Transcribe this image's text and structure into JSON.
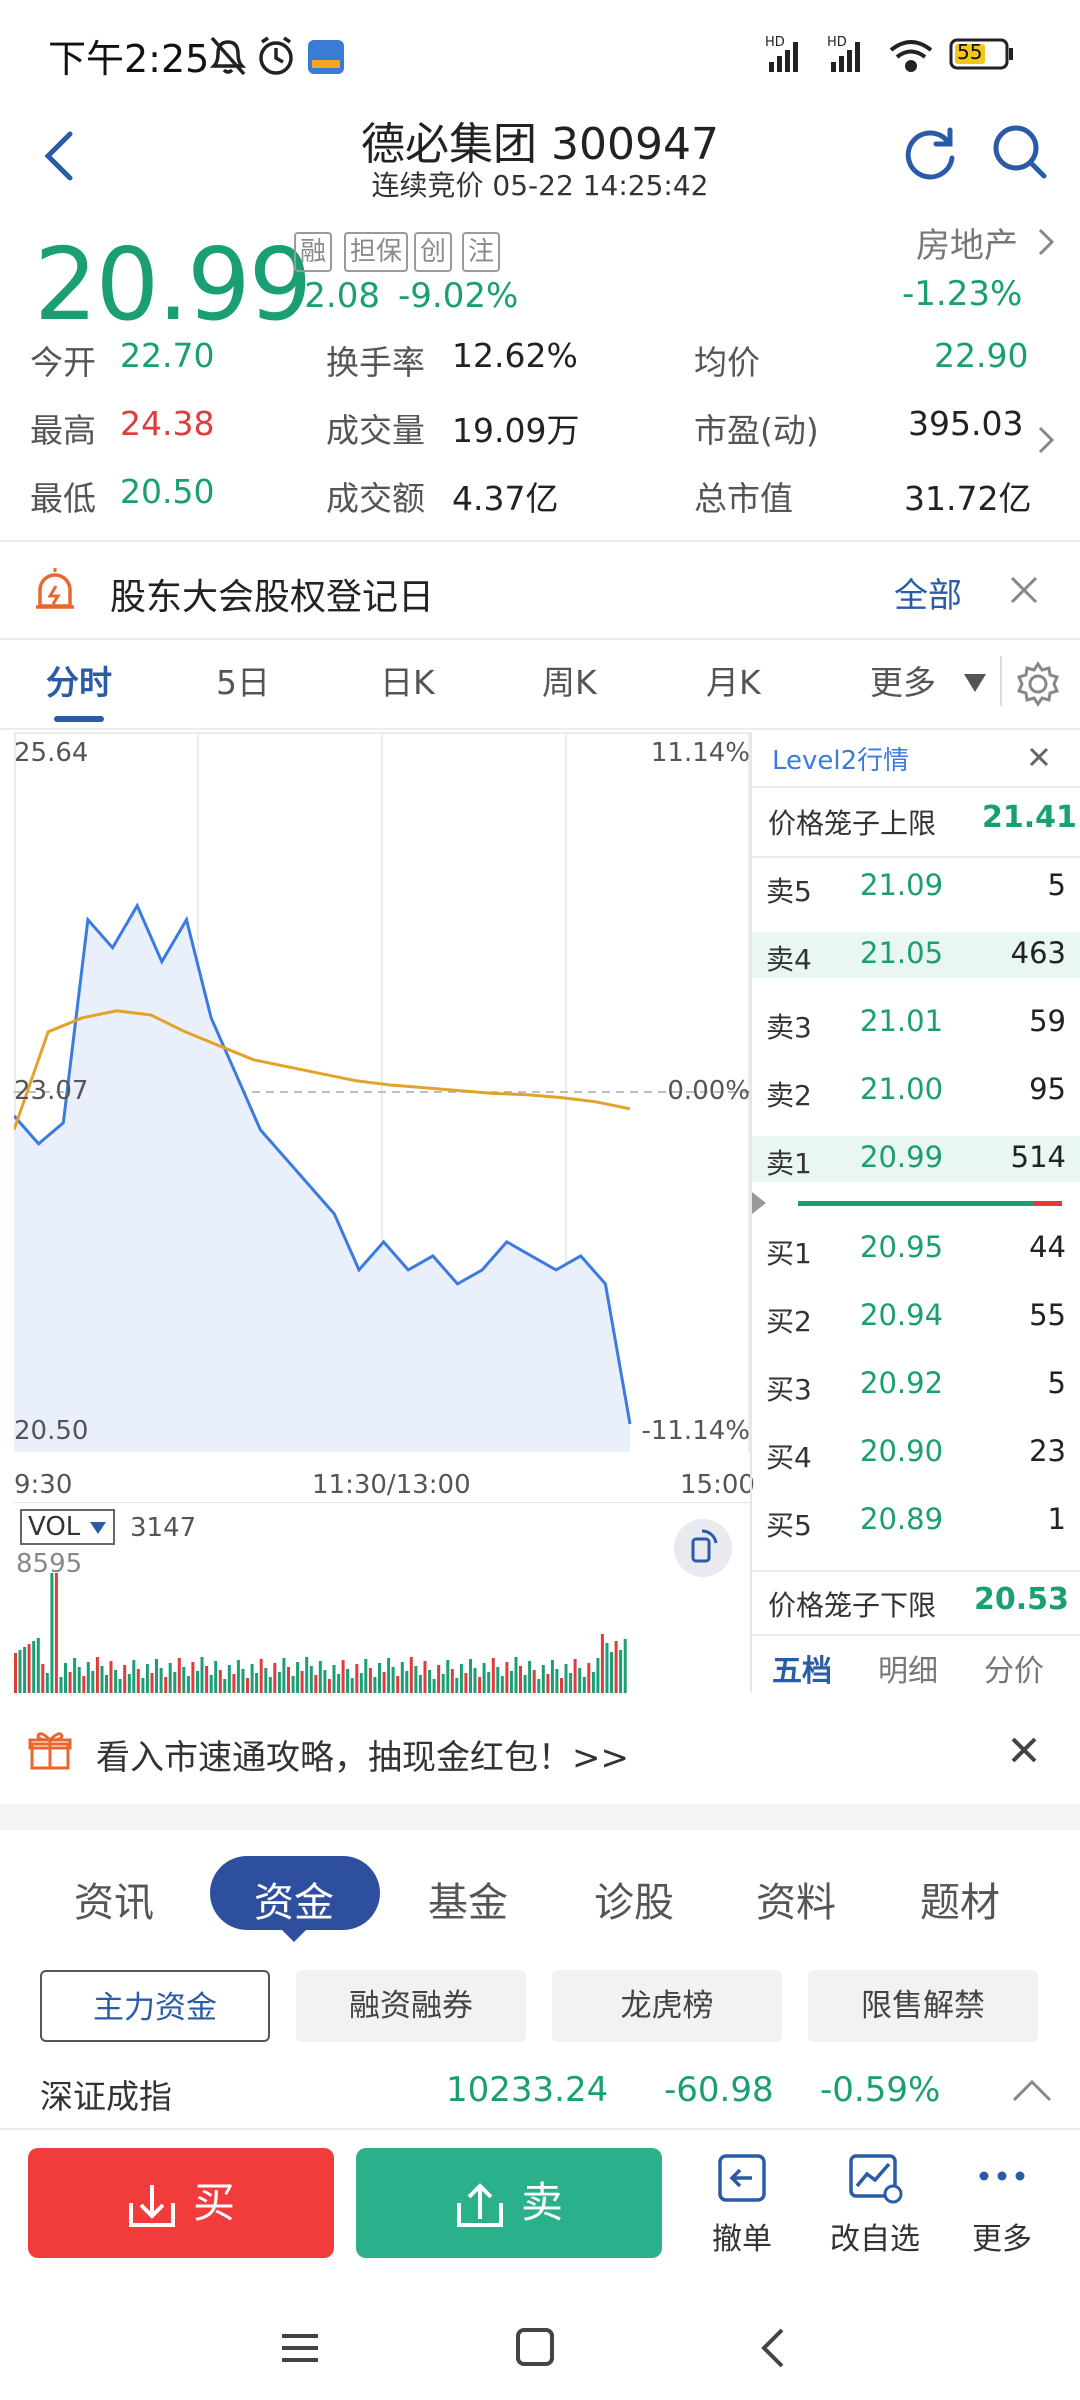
{
  "status_bar": {
    "time": "下午2:25",
    "battery": "55"
  },
  "header": {
    "title": "德必集团 300947",
    "subtitle": "连续竞价 05-22 14:25:42"
  },
  "quote": {
    "price": "20.99",
    "change": "-2.08",
    "change_pct": "-9.02%",
    "tags": [
      "融",
      "担保",
      "创",
      "注"
    ],
    "sector": "房地产",
    "sector_pct": "-1.23%"
  },
  "stats": [
    [
      {
        "label": "今开",
        "value": "22.70",
        "color": "green"
      },
      {
        "label": "换手率",
        "value": "12.62%",
        "color": "dark"
      },
      {
        "label": "均价",
        "value": "22.90",
        "color": "green"
      }
    ],
    [
      {
        "label": "最高",
        "value": "24.38",
        "color": "red"
      },
      {
        "label": "成交量",
        "value": "19.09万",
        "color": "dark"
      },
      {
        "label": "市盈(动)",
        "value": "395.03",
        "color": "dark"
      }
    ],
    [
      {
        "label": "最低",
        "value": "20.50",
        "color": "green"
      },
      {
        "label": "成交额",
        "value": "4.37亿",
        "color": "dark"
      },
      {
        "label": "总市值",
        "value": "31.72亿",
        "color": "dark"
      }
    ]
  ],
  "notice": {
    "text": "股东大会股权登记日",
    "action": "全部"
  },
  "chart_tabs": [
    "分时",
    "5日",
    "日K",
    "周K",
    "月K",
    "更多"
  ],
  "chart": {
    "price_high": "25.64",
    "price_mid": "23.07",
    "price_low": "20.50",
    "pct_high": "11.14%",
    "pct_mid": "0.00%",
    "pct_low": "-11.14%",
    "time_start": "9:30",
    "time_mid": "11:30/13:00",
    "time_end": "15:00",
    "vol_label": "VOL",
    "vol_value": "3147",
    "vol_max": "8595"
  },
  "chart_data": {
    "type": "line",
    "ylim": [
      20.5,
      25.64
    ],
    "series": [
      {
        "values": [
          22.9,
          22.7,
          22.85,
          24.3,
          24.1,
          24.4,
          24.0,
          24.3,
          23.6,
          23.2,
          22.8,
          22.6,
          22.4,
          22.2,
          21.8,
          22.0,
          21.8,
          21.9,
          21.7,
          21.8,
          22.0,
          21.9,
          21.8,
          21.9,
          21.7,
          20.7
        ]
      },
      {
        "values": [
          22.8,
          23.5,
          23.6,
          23.65,
          23.62,
          23.5,
          23.4,
          23.3,
          23.25,
          23.2,
          23.15,
          23.12,
          23.1,
          23.08,
          23.06,
          23.05,
          23.03,
          23.0,
          22.95
        ]
      }
    ]
  },
  "orderbook": {
    "title": "Level2行情",
    "upper_label": "价格笼子上限",
    "upper_value": "21.41",
    "asks": [
      {
        "label": "卖5",
        "price": "21.09",
        "vol": "5"
      },
      {
        "label": "卖4",
        "price": "21.05",
        "vol": "463"
      },
      {
        "label": "卖3",
        "price": "21.01",
        "vol": "59"
      },
      {
        "label": "卖2",
        "price": "21.00",
        "vol": "95"
      },
      {
        "label": "卖1",
        "price": "20.99",
        "vol": "514"
      }
    ],
    "bids": [
      {
        "label": "买1",
        "price": "20.95",
        "vol": "44"
      },
      {
        "label": "买2",
        "price": "20.94",
        "vol": "55"
      },
      {
        "label": "买3",
        "price": "20.92",
        "vol": "5"
      },
      {
        "label": "买4",
        "price": "20.90",
        "vol": "23"
      },
      {
        "label": "买5",
        "price": "20.89",
        "vol": "1"
      }
    ],
    "lower_label": "价格笼子下限",
    "lower_value": "20.53",
    "tabs": [
      "五档",
      "明细",
      "分价"
    ]
  },
  "promo": {
    "text": "看入市速通攻略，抽现金红包！>>"
  },
  "nav_tabs": [
    "资讯",
    "资金",
    "基金",
    "诊股",
    "资料",
    "题材"
  ],
  "fund_pills": [
    "主力资金",
    "融资融券",
    "龙虎榜",
    "限售解禁"
  ],
  "index_ticker": {
    "name": "深证成指",
    "value": "10233.24",
    "change": "-60.98",
    "pct": "-0.59%"
  },
  "actions": {
    "buy": "买",
    "sell": "卖",
    "cancel": "撤单",
    "watch": "改自选",
    "more": "更多"
  }
}
